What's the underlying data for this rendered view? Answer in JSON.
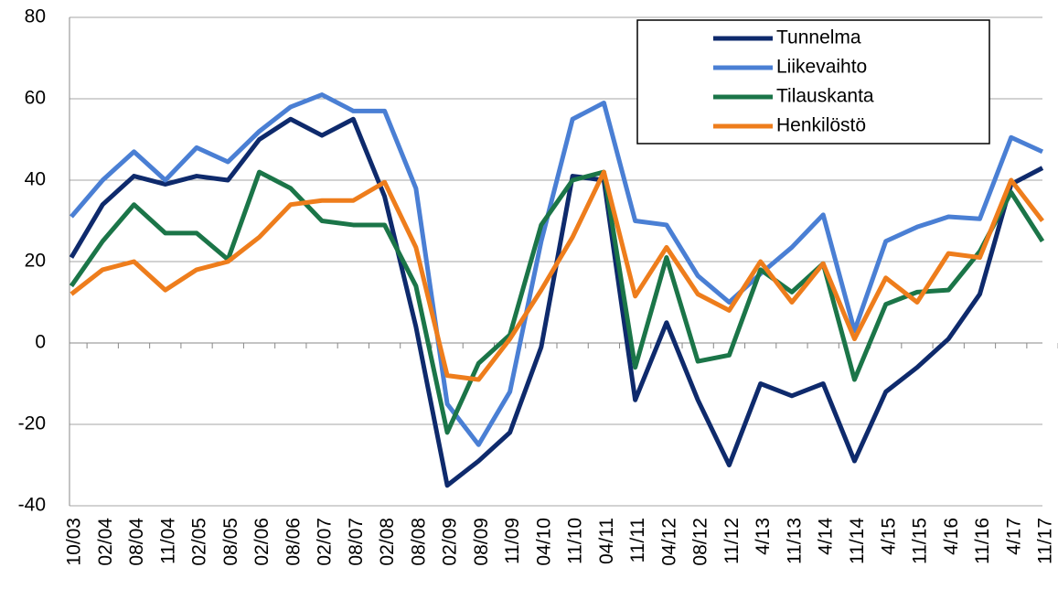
{
  "chart_data": {
    "type": "line",
    "categories": [
      "10/03",
      "02/04",
      "08/04",
      "11/04",
      "02/05",
      "08/05",
      "02/06",
      "08/06",
      "02/07",
      "08/07",
      "02/08",
      "08/08",
      "02/09",
      "08/09",
      "11/09",
      "04/10",
      "11/10",
      "04/11",
      "11/11",
      "04/12",
      "08/12",
      "11/12",
      "4/13",
      "11/13",
      "4/14",
      "11/14",
      "4/15",
      "11/15",
      "4/16",
      "11/16",
      "4/17",
      "11/17"
    ],
    "series": [
      {
        "name": "Tunnelma",
        "color": "#0e2a6c",
        "values": [
          21,
          34,
          41,
          39,
          41,
          40,
          50,
          55,
          51,
          55,
          36,
          4,
          -35,
          -29,
          -22,
          -1,
          41,
          40,
          -14,
          5,
          -14,
          -30,
          -10,
          -13,
          -10,
          -29,
          -12,
          -6,
          1,
          12,
          39,
          43
        ]
      },
      {
        "name": "Liikevaihto",
        "color": "#4a7fd4",
        "values": [
          31,
          40,
          47,
          40,
          48,
          44.5,
          52,
          58,
          61,
          57,
          57,
          38,
          -15,
          -25,
          -12,
          25,
          55,
          59,
          30,
          29,
          16.5,
          10,
          17,
          23.5,
          31.5,
          3,
          25,
          28.5,
          31,
          30.5,
          50.5,
          47
        ]
      },
      {
        "name": "Tilauskanta",
        "color": "#1b7548",
        "values": [
          14,
          25,
          34,
          27,
          27,
          20.5,
          42,
          38,
          30,
          29,
          29,
          14,
          -22,
          -5,
          2,
          29,
          40,
          42,
          -6,
          21,
          -4.5,
          -3,
          18,
          12.5,
          19.5,
          -9,
          9.5,
          12.5,
          13,
          22.5,
          37,
          25
        ]
      },
      {
        "name": "Henkilöstö",
        "color": "#ee7d1c",
        "values": [
          12,
          18,
          20,
          13,
          18,
          20,
          26,
          34,
          35,
          35,
          39.5,
          23.5,
          -8,
          -9,
          1,
          13,
          26,
          42,
          11.5,
          23.5,
          12,
          8,
          20,
          10,
          19.5,
          1,
          16,
          10,
          22,
          21,
          40,
          30
        ]
      }
    ],
    "ylim": [
      -40,
      80
    ],
    "yticks": [
      -40,
      -20,
      0,
      20,
      40,
      60,
      80
    ],
    "grid": true,
    "legend": "top-right"
  }
}
